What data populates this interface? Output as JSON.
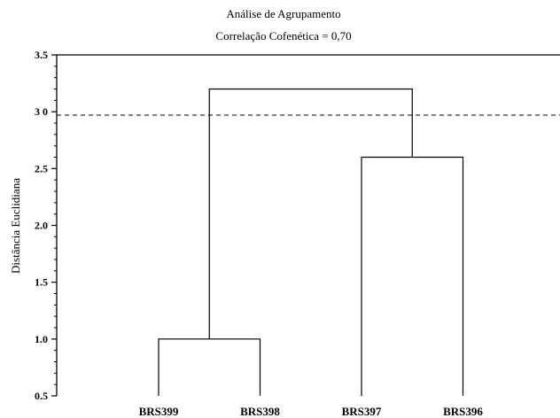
{
  "chart_data": {
    "type": "dendrogram",
    "title": "Análise de Agrupamento",
    "subtitle": "Correlação Cofenética = 0,70",
    "ylabel": "Distância Euclidiana",
    "xlabel": "",
    "ylim": [
      0.5,
      3.5
    ],
    "yticks": [
      0.5,
      1.0,
      1.5,
      2.0,
      2.5,
      3.0,
      3.5
    ],
    "ytick_labels": [
      "0.5",
      "1.0",
      "1.5",
      "2.0",
      "2.5",
      "3 0",
      "3.5"
    ],
    "categories": [
      "BRS399",
      "BRS398",
      "BRS397",
      "BRS396"
    ],
    "merges": [
      {
        "left": "BRS399",
        "right": "BRS398",
        "height": 1.0
      },
      {
        "left": "BRS397",
        "right": "BRS396",
        "height": 2.6
      },
      {
        "left": "BRS399+BRS398",
        "right": "BRS397+BRS396",
        "height": 3.2
      }
    ],
    "cutoff": 2.97,
    "grid": false,
    "line_color": "#000000"
  }
}
